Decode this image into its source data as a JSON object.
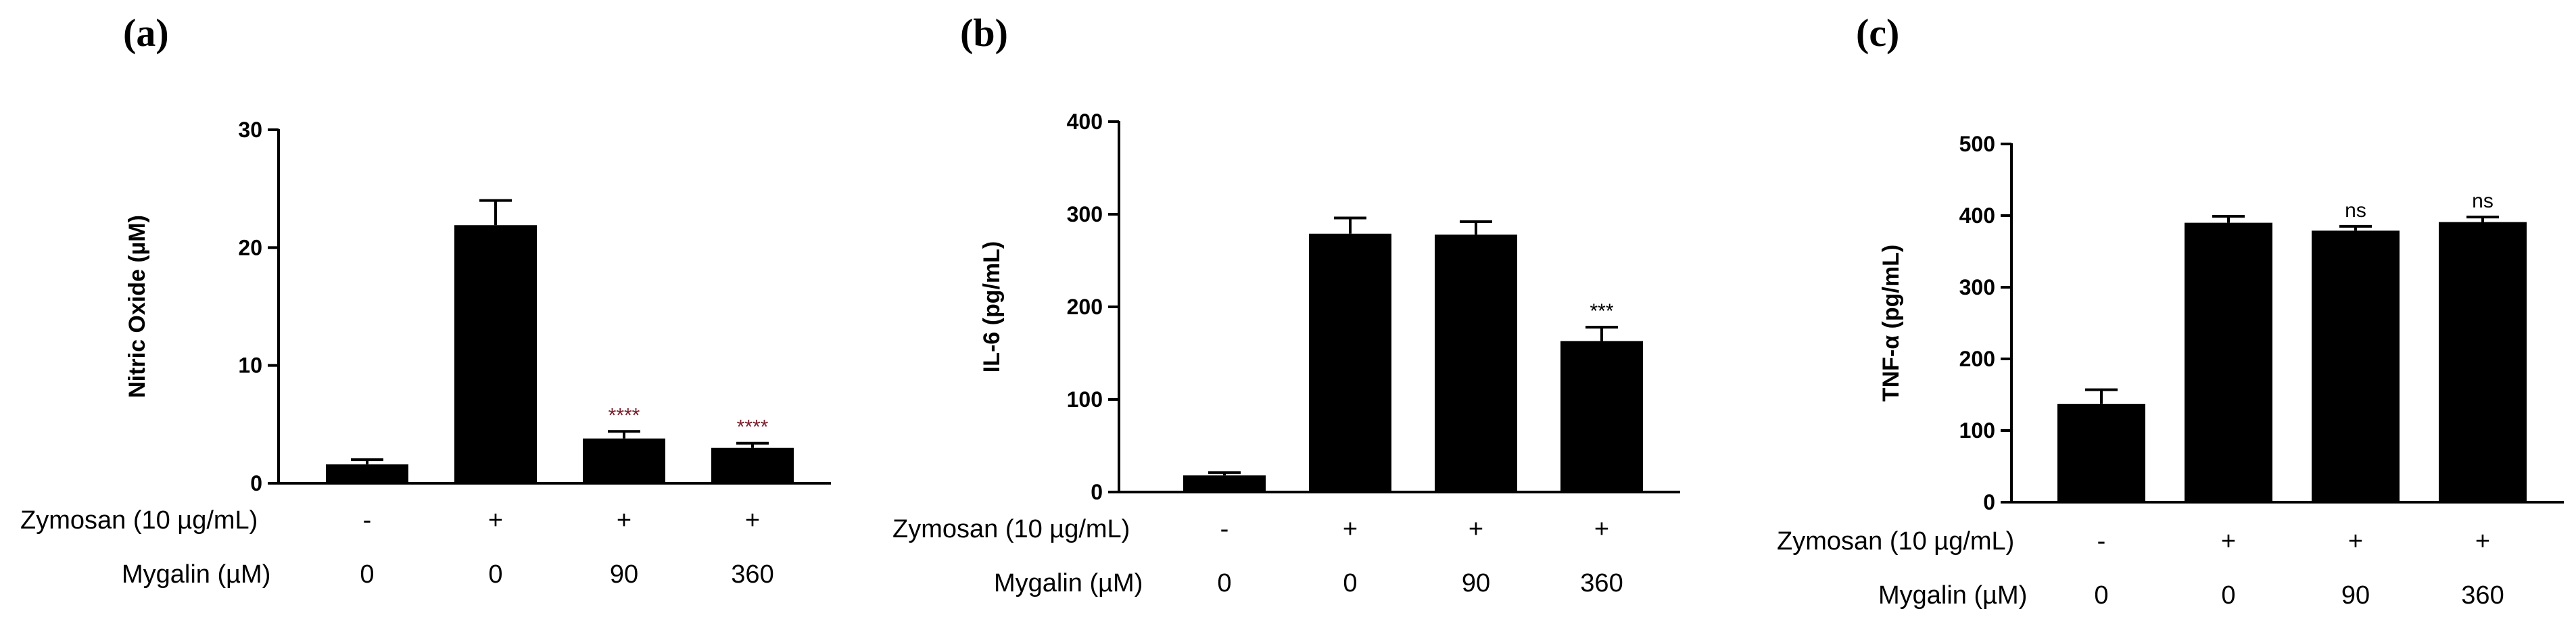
{
  "chart_data": [
    {
      "type": "bar",
      "panel_label": "(a)",
      "ylabel": "Nitric Oxide (µM)",
      "ylim": [
        0,
        30
      ],
      "yticks": [
        0,
        10,
        20,
        30
      ],
      "categories": [
        "1",
        "2",
        "3",
        "4"
      ],
      "values": [
        1.6,
        21.9,
        3.8,
        3.0
      ],
      "errors": [
        0.4,
        2.1,
        0.6,
        0.4
      ],
      "significance": [
        "",
        "",
        "****",
        "****"
      ],
      "row_labels": [
        "Zymosan (10 µg/mL)",
        "Mygalin (µM)"
      ],
      "zymosan": [
        "-",
        "+",
        "+",
        "+"
      ],
      "mygalin": [
        "0",
        "0",
        "90",
        "360"
      ]
    },
    {
      "type": "bar",
      "panel_label": "(b)",
      "ylabel": "IL-6 (pg/mL)",
      "ylim": [
        0,
        400
      ],
      "yticks": [
        0,
        100,
        200,
        300,
        400
      ],
      "categories": [
        "1",
        "2",
        "3",
        "4"
      ],
      "values": [
        18,
        279,
        278,
        163
      ],
      "errors": [
        3,
        17,
        14,
        15
      ],
      "significance": [
        "",
        "",
        "",
        "***"
      ],
      "row_labels": [
        "Zymosan (10 µg/mL)",
        "Mygalin (µM)"
      ],
      "zymosan": [
        "-",
        "+",
        "+",
        "+"
      ],
      "mygalin": [
        "0",
        "0",
        "90",
        "360"
      ]
    },
    {
      "type": "bar",
      "panel_label": "(c)",
      "ylabel": "TNF-α (pg/mL)",
      "ylim": [
        0,
        500
      ],
      "yticks": [
        0,
        100,
        200,
        300,
        400,
        500
      ],
      "categories": [
        "1",
        "2",
        "3",
        "4"
      ],
      "values": [
        137,
        390,
        379,
        391
      ],
      "errors": [
        20,
        9,
        6,
        7
      ],
      "significance": [
        "",
        "",
        "ns",
        "ns"
      ],
      "row_labels": [
        "Zymosan (10 µg/mL)",
        "Mygalin (µM)"
      ],
      "zymosan": [
        "-",
        "+",
        "+",
        "+"
      ],
      "mygalin": [
        "0",
        "0",
        "90",
        "360"
      ]
    }
  ],
  "colors": {
    "bar": "#000000",
    "axis": "#000000",
    "significance_a": "#7a1f2b"
  }
}
